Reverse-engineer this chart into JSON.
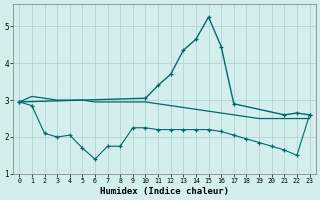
{
  "bg_color": "#d4eeee",
  "grid_color": "#b0d4d4",
  "line_color": "#006868",
  "xlabel": "Humidex (Indice chaleur)",
  "ylim": [
    1.0,
    5.6
  ],
  "xlim": [
    -0.5,
    23.5
  ],
  "yticks": [
    1,
    2,
    3,
    4,
    5
  ],
  "xticks": [
    0,
    1,
    2,
    3,
    4,
    5,
    6,
    7,
    8,
    9,
    10,
    11,
    12,
    13,
    14,
    15,
    16,
    17,
    18,
    19,
    20,
    21,
    22,
    23
  ],
  "line_flat_x": [
    0,
    1,
    2,
    3,
    4,
    5,
    6,
    7,
    8,
    9,
    10,
    11,
    12,
    13,
    14,
    15,
    16,
    17,
    18,
    19,
    20,
    21,
    22,
    23
  ],
  "line_flat_y": [
    2.95,
    3.1,
    3.05,
    3.0,
    3.0,
    3.0,
    2.95,
    2.95,
    2.95,
    2.95,
    2.95,
    2.9,
    2.85,
    2.8,
    2.75,
    2.7,
    2.65,
    2.6,
    2.55,
    2.5,
    2.5,
    2.5,
    2.5,
    2.5
  ],
  "line_low_x": [
    0,
    1,
    2,
    3,
    4,
    5,
    6,
    7,
    8,
    9,
    10,
    11,
    12,
    13,
    14,
    15,
    16,
    17,
    18,
    19,
    20,
    21,
    22,
    23
  ],
  "line_low_y": [
    2.95,
    2.85,
    2.1,
    2.0,
    2.05,
    1.7,
    1.4,
    1.75,
    1.75,
    2.25,
    2.25,
    2.2,
    2.2,
    2.2,
    2.2,
    2.2,
    2.15,
    2.05,
    1.95,
    1.85,
    1.75,
    1.65,
    1.5,
    2.6
  ],
  "line_peak_x": [
    0,
    10,
    11,
    12,
    13,
    14,
    15,
    16,
    17,
    21,
    22,
    23
  ],
  "line_peak_y": [
    2.95,
    3.05,
    3.4,
    3.7,
    4.35,
    4.65,
    5.25,
    4.45,
    2.9,
    2.6,
    2.65,
    2.6
  ]
}
